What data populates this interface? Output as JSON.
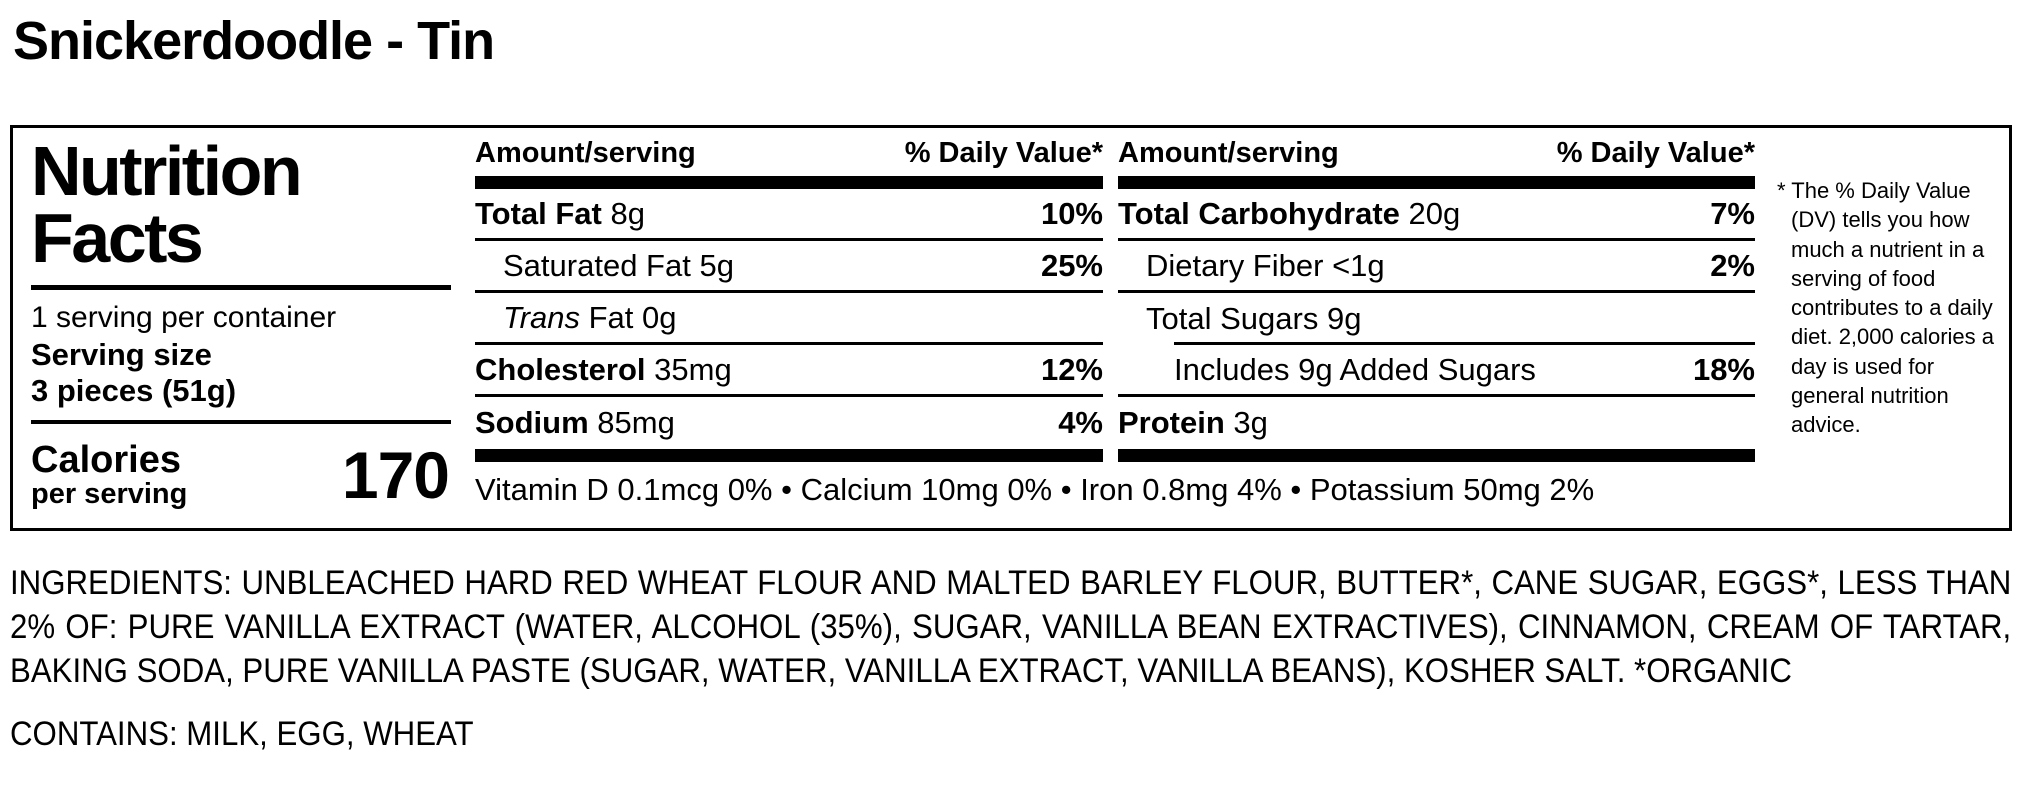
{
  "title": "Snickerdoodle - Tin",
  "label": {
    "heading": "Nutrition Facts",
    "servings_per_container": "1 serving per container",
    "serving_size_label": "Serving size",
    "serving_size_value": "3 pieces (51g)",
    "calories_label": "Calories",
    "calories_sublabel": "per serving",
    "calories_value": "170",
    "col_header_amount": "Amount/serving",
    "col_header_dv": "% Daily Value*",
    "columns": [
      {
        "rows": [
          {
            "label": "Total Fat",
            "amount": "8g",
            "dv": "10%"
          },
          {
            "label": "Saturated Fat",
            "amount": "5g",
            "dv": "25%"
          },
          {
            "label_italic": "Trans",
            "label": "Fat",
            "amount": "0g",
            "dv": ""
          },
          {
            "label": "Cholesterol",
            "amount": "35mg",
            "dv": "12%"
          },
          {
            "label": "Sodium",
            "amount": "85mg",
            "dv": "4%"
          }
        ]
      },
      {
        "rows": [
          {
            "label": "Total Carbohydrate",
            "amount": "20g",
            "dv": "7%"
          },
          {
            "label": "Dietary Fiber",
            "amount": "<1g",
            "dv": "2%"
          },
          {
            "label": "Total Sugars",
            "amount": "9g",
            "dv": ""
          },
          {
            "label": "Includes 9g Added Sugars",
            "amount": "",
            "dv": "18%"
          },
          {
            "label": "Protein",
            "amount": "3g",
            "dv": ""
          }
        ]
      }
    ],
    "vitamins": "Vitamin D 0.1mcg 0% • Calcium 10mg 0% • Iron 0.8mg 4% • Potassium 50mg 2%",
    "footnote": "* The % Daily Value (DV) tells you how much a nutrient in a serving of food contributes to a daily diet. 2,000 calories a day is used for general nutrition advice."
  },
  "ingredients": "INGREDIENTS: UNBLEACHED HARD RED WHEAT FLOUR AND MALTED BARLEY FLOUR, BUTTER*, CANE SUGAR, EGGS*, LESS THAN 2% OF: PURE VANILLA EXTRACT (WATER, ALCOHOL (35%), SUGAR, VANILLA BEAN EXTRACTIVES), CINNAMON, CREAM OF TARTAR, BAKING SODA, PURE VANILLA PASTE (SUGAR, WATER, VANILLA EXTRACT, VANILLA BEANS), KOSHER SALT. *ORGANIC",
  "contains": "CONTAINS: MILK, EGG, WHEAT"
}
